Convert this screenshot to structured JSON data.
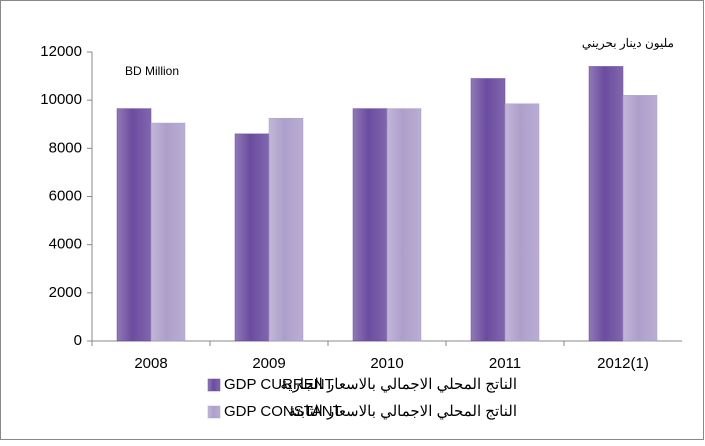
{
  "chart_data": {
    "type": "bar",
    "annotations": [
      "BD Million",
      "مليون دينار بحريني"
    ],
    "categories": [
      "2008",
      "2009",
      "2010",
      "2011",
      "2012(1)"
    ],
    "series": [
      {
        "name": "GDP CURRENT",
        "name_ar": "الناتج المحلي الاجمالي بالاسعار الجارية",
        "color": "#6b4c9f",
        "values": [
          9650,
          8600,
          9650,
          10900,
          11400
        ]
      },
      {
        "name": "GDP CONSTANT",
        "name_ar": "الناتج المحلي الاجمالي بالاسعار الثابتة",
        "color": "#ad9fcb",
        "values": [
          9050,
          9250,
          9650,
          9850,
          10200
        ]
      }
    ],
    "ylim": [
      0,
      12000
    ],
    "yticks": [
      0,
      2000,
      4000,
      6000,
      8000,
      10000,
      12000
    ],
    "grid": false
  }
}
